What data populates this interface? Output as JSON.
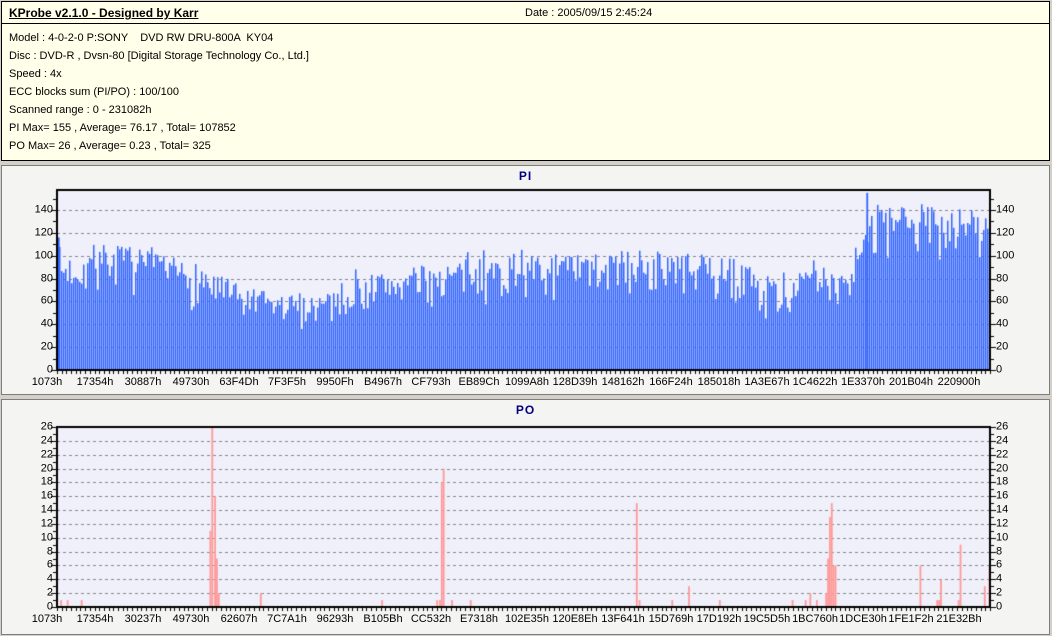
{
  "header": {
    "title": "KProbe v2.1.0 - Designed by Karr",
    "date_label": "Date : 2005/09/15 2:45:24"
  },
  "info": {
    "lines": [
      "Model : 4-0-2-0 P:SONY    DVD RW DRU-800A  KY04",
      "Disc : DVD-R , Dvsn-80 [Digital Storage Technology Co., Ltd.]",
      "Speed : 4x",
      "ECC blocks sum (PI/PO) : 100/100",
      "Scanned range : 0 - 231082h",
      "PI Max= 155 , Average= 76.17 , Total= 107852",
      "PO Max= 26 , Average= 0.23 , Total= 325"
    ]
  },
  "colors": {
    "page_bg": "#D4D0C8",
    "header_bg": "#FFFFEA",
    "panel_bg": "#F4F4F2",
    "plot_bg": "#F0F0FA",
    "grid": "#8A8A8A",
    "axis": "#000000",
    "title": "#000080",
    "pi_bar": "#3366FF",
    "po_bar": "#FF9A9A"
  },
  "chart_data": [
    {
      "type": "bar",
      "title": "PI",
      "ylabel": "",
      "xlabel": "",
      "ylim": [
        0,
        157.5
      ],
      "yticks": [
        0,
        20,
        40,
        60,
        80,
        100,
        120,
        140
      ],
      "ytick_minor_step": 10,
      "grid": true,
      "categories": [
        "1073h",
        "17354h",
        "30887h",
        "49730h",
        "63F4Dh",
        "7F3F5h",
        "9950Fh",
        "B4967h",
        "CF793h",
        "EB89Ch",
        "1099A8h",
        "128D39h",
        "148162h",
        "166F24h",
        "185018h",
        "1A3E67h",
        "1C4622h",
        "1E3370h",
        "201B04h",
        "220900h"
      ],
      "stats": {
        "max": 155,
        "average": 76.17,
        "total": 107852
      },
      "bar_color": "#3366FF",
      "noise_seed": 7,
      "envelope": [
        [
          0.0,
          55,
          118
        ],
        [
          0.004,
          58,
          100
        ],
        [
          0.03,
          62,
          106
        ],
        [
          0.055,
          70,
          112
        ],
        [
          0.08,
          64,
          108
        ],
        [
          0.11,
          56,
          100
        ],
        [
          0.15,
          50,
          96
        ],
        [
          0.175,
          42,
          84
        ],
        [
          0.195,
          36,
          74
        ],
        [
          0.24,
          34,
          66
        ],
        [
          0.285,
          36,
          70
        ],
        [
          0.31,
          42,
          78
        ],
        [
          0.34,
          48,
          86
        ],
        [
          0.38,
          52,
          90
        ],
        [
          0.42,
          55,
          95
        ],
        [
          0.466,
          56,
          100
        ],
        [
          0.52,
          58,
          100
        ],
        [
          0.57,
          58,
          102
        ],
        [
          0.62,
          62,
          106
        ],
        [
          0.66,
          60,
          104
        ],
        [
          0.7,
          58,
          100
        ],
        [
          0.73,
          56,
          98
        ],
        [
          0.75,
          44,
          84
        ],
        [
          0.775,
          42,
          80
        ],
        [
          0.8,
          50,
          88
        ],
        [
          0.83,
          52,
          92
        ],
        [
          0.853,
          55,
          95
        ],
        [
          0.858,
          85,
          135
        ],
        [
          0.88,
          88,
          140
        ],
        [
          0.91,
          92,
          145
        ],
        [
          0.95,
          95,
          147
        ],
        [
          0.98,
          92,
          142
        ],
        [
          1.0,
          90,
          135
        ]
      ],
      "spikes": [
        [
          0.0015,
          116
        ],
        [
          0.868,
          155
        ]
      ]
    },
    {
      "type": "bar",
      "title": "PO",
      "ylabel": "",
      "xlabel": "",
      "ylim": [
        0,
        26
      ],
      "yticks": [
        0,
        2,
        4,
        6,
        8,
        10,
        12,
        14,
        16,
        18,
        20,
        22,
        24,
        26
      ],
      "ytick_minor_step": 1,
      "grid": true,
      "categories": [
        "1073h",
        "17354h",
        "30237h",
        "49730h",
        "62607h",
        "7C7A1h",
        "96293h",
        "B105Bh",
        "CC532h",
        "E7318h",
        "102E35h",
        "120E8Eh",
        "13F641h",
        "15D769h",
        "17D192h",
        "19C5D5h",
        "1BC760h",
        "1DCE30h",
        "1FE1F2h",
        "21E32Bh"
      ],
      "stats": {
        "max": 26,
        "average": 0.23,
        "total": 325
      },
      "bar_color": "#FF9A9A",
      "spikes": [
        [
          0.004,
          1
        ],
        [
          0.011,
          1
        ],
        [
          0.026,
          1
        ],
        [
          0.164,
          11
        ],
        [
          0.166,
          26
        ],
        [
          0.169,
          16
        ],
        [
          0.171,
          7
        ],
        [
          0.173,
          2
        ],
        [
          0.218,
          2
        ],
        [
          0.348,
          1
        ],
        [
          0.407,
          1
        ],
        [
          0.41,
          1
        ],
        [
          0.412,
          18
        ],
        [
          0.414,
          20
        ],
        [
          0.423,
          1
        ],
        [
          0.443,
          1
        ],
        [
          0.621,
          15
        ],
        [
          0.624,
          1
        ],
        [
          0.659,
          1
        ],
        [
          0.677,
          3
        ],
        [
          0.71,
          1
        ],
        [
          0.788,
          1
        ],
        [
          0.802,
          1
        ],
        [
          0.807,
          2
        ],
        [
          0.814,
          1
        ],
        [
          0.824,
          2
        ],
        [
          0.826,
          7
        ],
        [
          0.828,
          13
        ],
        [
          0.83,
          15
        ],
        [
          0.832,
          6
        ],
        [
          0.834,
          6
        ],
        [
          0.925,
          6
        ],
        [
          0.943,
          1
        ],
        [
          0.945,
          1
        ],
        [
          0.947,
          4
        ],
        [
          0.966,
          1
        ],
        [
          0.968,
          9
        ],
        [
          0.994,
          3
        ],
        [
          0.999,
          6
        ]
      ]
    }
  ]
}
